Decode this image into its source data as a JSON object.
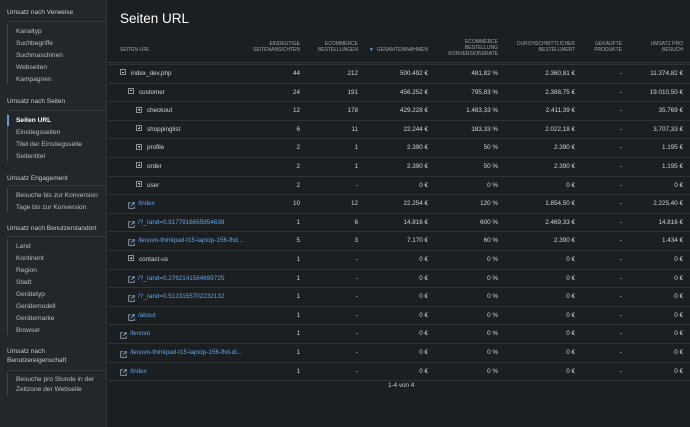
{
  "sidebar": {
    "groups": [
      {
        "title": "Umsatz nach Verweise",
        "items": [
          "Kanaltyp",
          "Suchbegriffe",
          "Suchmaschinen",
          "Webseiten",
          "Kampagnen"
        ]
      },
      {
        "title": "Umsatz nach Seiten",
        "items": [
          "Seiten URL",
          "Einstiegsseiten",
          "Titel der Einstiegsseite",
          "Seitentitel"
        ]
      },
      {
        "title": "Umsatz Engagement",
        "items": [
          "Besuche bis zur Konversion",
          "Tage bis zur Konversion"
        ]
      },
      {
        "title": "Umsatz nach Benutzerstandort",
        "items": [
          "Land",
          "Kontinent",
          "Region",
          "Stadt",
          "Gerätetyp",
          "Gerätemodell",
          "Gerätemarke",
          "Browser"
        ]
      },
      {
        "title_lines": [
          "Umsatz nach",
          "Benutzereigenschaft"
        ],
        "items": [
          "Besuche pro Stunde in der",
          "Zeitzone der Webseite"
        ]
      }
    ],
    "active_item": "Seiten URL"
  },
  "page": {
    "title": "Seiten URL"
  },
  "table": {
    "headers": [
      [
        "SEITEN-URL"
      ],
      [
        "EINDEUTIGE",
        "SEITENANSICHTEN"
      ],
      [
        "ECOMMERCE",
        "BESTELLUNGEN"
      ],
      [
        "GESAMTEINNAHMEN"
      ],
      [
        "ECOMMERCE",
        "BESTELLUNG",
        "KONVERSIONSRATE"
      ],
      [
        "DURCHSCHNITTLICHER",
        "BESTELLWERT"
      ],
      [
        "GEKAUFTE",
        "PRODUKTE"
      ],
      [
        "UMSATZ PRO",
        "BESUCH"
      ]
    ],
    "sort_indicator": "▼",
    "rows": [
      {
        "indent": 0,
        "icon": "minus",
        "name": "index_dev.php",
        "link": false,
        "cells": [
          "44",
          "212",
          "500.492 €",
          "481,82 %",
          "2.360,81 €",
          "-",
          "11.374,82 €"
        ]
      },
      {
        "indent": 1,
        "icon": "minus",
        "name": "customer",
        "link": false,
        "cells": [
          "24",
          "191",
          "456.252 €",
          "795,83 %",
          "2.388,75 €",
          "-",
          "19.010,50 €"
        ]
      },
      {
        "indent": 2,
        "icon": "plus",
        "name": "checkout",
        "link": false,
        "cells": [
          "12",
          "178",
          "429.228 €",
          "1.483,33 %",
          "2.411,39 €",
          "-",
          "35.769 €"
        ]
      },
      {
        "indent": 2,
        "icon": "plus",
        "name": "shoppinglist",
        "link": false,
        "cells": [
          "6",
          "11",
          "22.244 €",
          "183,33 %",
          "2.022,18 €",
          "-",
          "3.707,33 €"
        ]
      },
      {
        "indent": 2,
        "icon": "plus",
        "name": "profile",
        "link": false,
        "cells": [
          "2",
          "1",
          "2.390 €",
          "50 %",
          "2.390 €",
          "-",
          "1.195 €"
        ]
      },
      {
        "indent": 2,
        "icon": "plus",
        "name": "order",
        "link": false,
        "cells": [
          "2",
          "1",
          "2.390 €",
          "50 %",
          "2.390 €",
          "-",
          "1.195 €"
        ]
      },
      {
        "indent": 2,
        "icon": "plus",
        "name": "user",
        "link": false,
        "cells": [
          "2",
          "-",
          "0 €",
          "0 %",
          "0 €",
          "-",
          "0 €"
        ]
      },
      {
        "indent": 1,
        "icon": "ext",
        "name": "/index",
        "link": true,
        "cells": [
          "10",
          "12",
          "22.254 €",
          "120 %",
          "1.854,50 €",
          "-",
          "2.225,40 €"
        ]
      },
      {
        "indent": 1,
        "icon": "ext",
        "name": "/?_rand=0.8177916655954639",
        "link": true,
        "cells": [
          "1",
          "6",
          "14.816 €",
          "600 %",
          "2.469,33 €",
          "-",
          "14.816 €"
        ]
      },
      {
        "indent": 1,
        "icon": "ext",
        "name": "/lenovo-thinkpad-t15-laptop-156-fhd...",
        "link": true,
        "cells": [
          "5",
          "3",
          "7.170 €",
          "60 %",
          "2.390 €",
          "-",
          "1.434 €"
        ]
      },
      {
        "indent": 1,
        "icon": "plus",
        "name": "contact-us",
        "link": false,
        "cells": [
          "1",
          "-",
          "0 €",
          "0 %",
          "0 €",
          "-",
          "0 €"
        ]
      },
      {
        "indent": 1,
        "icon": "ext",
        "name": "/?_rand=0.2762141564699725",
        "link": true,
        "cells": [
          "1",
          "-",
          "0 €",
          "0 %",
          "0 €",
          "-",
          "0 €"
        ]
      },
      {
        "indent": 1,
        "icon": "ext",
        "name": "/?_rand=0.5123155702232132",
        "link": true,
        "cells": [
          "1",
          "-",
          "0 €",
          "0 %",
          "0 €",
          "-",
          "0 €"
        ]
      },
      {
        "indent": 1,
        "icon": "ext",
        "name": "/about",
        "link": true,
        "cells": [
          "1",
          "-",
          "0 €",
          "0 %",
          "0 €",
          "-",
          "0 €"
        ]
      },
      {
        "indent": 0,
        "icon": "ext",
        "name": "/lenovo",
        "link": true,
        "cells": [
          "1",
          "-",
          "0 €",
          "0 %",
          "0 €",
          "-",
          "0 €"
        ]
      },
      {
        "indent": 0,
        "icon": "ext",
        "name": "/lenovo-thinkpad-t15-laptop-156-fhd-di...",
        "link": true,
        "cells": [
          "1",
          "-",
          "0 €",
          "0 %",
          "0 €",
          "-",
          "0 €"
        ]
      },
      {
        "indent": 0,
        "icon": "ext",
        "name": "/index",
        "link": true,
        "cells": [
          "1",
          "-",
          "0 €",
          "0 %",
          "0 €",
          "-",
          "0 €"
        ]
      }
    ]
  },
  "pager": {
    "text": "1-4 von 4"
  },
  "colors": {
    "accent": "#5ea6ee",
    "background": "#1b1f22",
    "sidebar": "#232729"
  }
}
